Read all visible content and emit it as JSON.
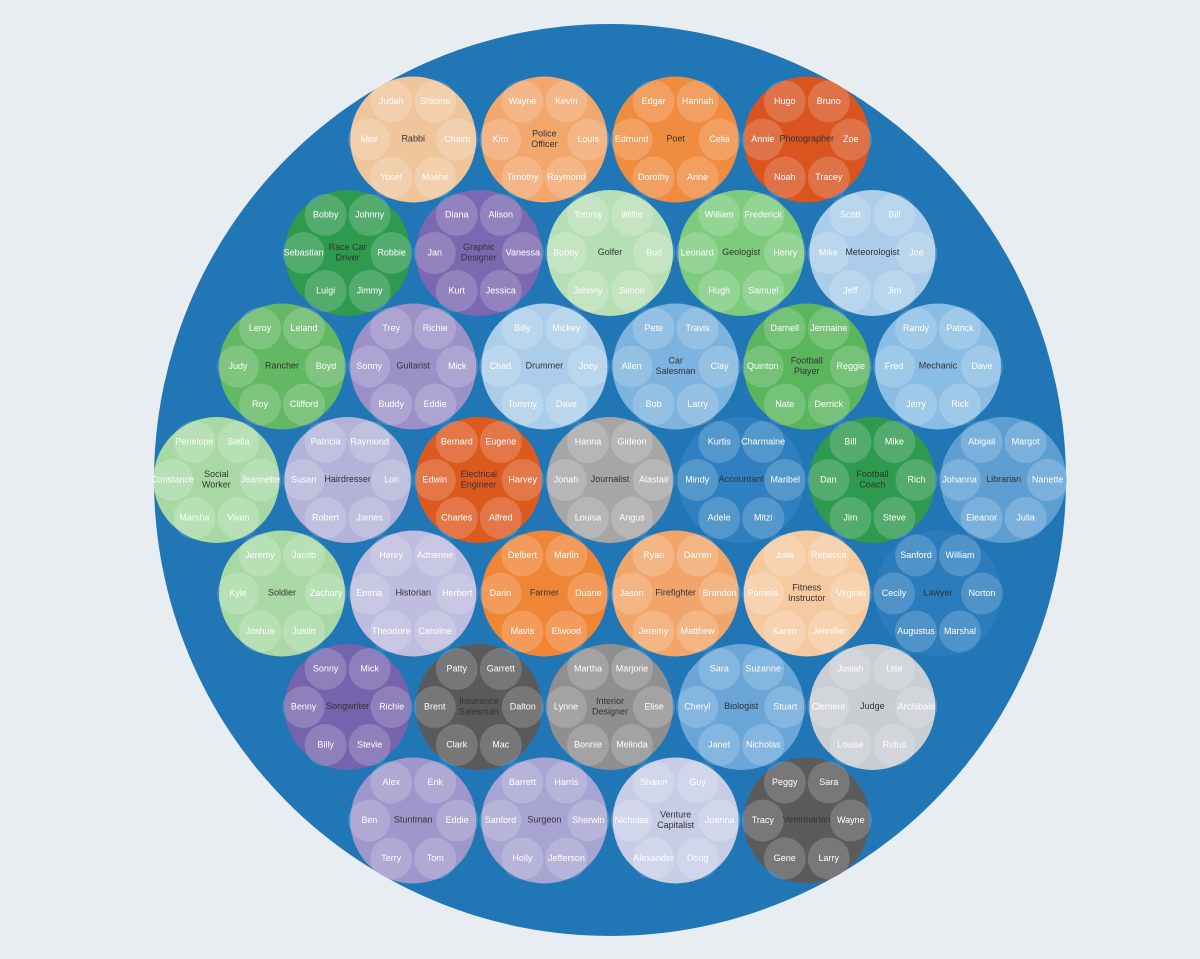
{
  "chart_data": {
    "type": "circle-packing",
    "groups": [
      {
        "name": "Rabbi",
        "color": "#efc59c",
        "children": [
          "Judah",
          "Shlomo",
          "Meir",
          "Chaim",
          "Yosef",
          "Moshe"
        ]
      },
      {
        "name": "Police Officer",
        "color": "#f2a76d",
        "children": [
          "Wayne",
          "Kevin",
          "Kim",
          "Louis",
          "Timothy",
          "Raymond"
        ]
      },
      {
        "name": "Poet",
        "color": "#ef8c3f",
        "children": [
          "Edgar",
          "Hannah",
          "Edmund",
          "Celia",
          "Dorothy",
          "Anne"
        ]
      },
      {
        "name": "Photographer",
        "color": "#d9541f",
        "children": [
          "Hugo",
          "Bruno",
          "Annie",
          "Zoe",
          "Noah",
          "Tracey"
        ]
      },
      {
        "name": "Race Car Driver",
        "color": "#2e9a4e",
        "children": [
          "Bobby",
          "Johnny",
          "Sebastian",
          "Robbie",
          "Luigi",
          "Jimmy"
        ]
      },
      {
        "name": "Graphic Designer",
        "color": "#7a68b0",
        "children": [
          "Diana",
          "Alison",
          "Jan",
          "Vanessa",
          "Kurt",
          "Jessica"
        ]
      },
      {
        "name": "Golfer",
        "color": "#b7dfb5",
        "children": [
          "Tommy",
          "Willie",
          "Bobby",
          "Bud",
          "Johnny",
          "Simon"
        ]
      },
      {
        "name": "Geologist",
        "color": "#7dcb7d",
        "children": [
          "William",
          "Frederick",
          "Leonard",
          "Henry",
          "Hugh",
          "Samuel"
        ]
      },
      {
        "name": "Meteorologist",
        "color": "#abcdea",
        "children": [
          "Scott",
          "Bill",
          "Mike",
          "Joe",
          "Jeff",
          "Jim"
        ]
      },
      {
        "name": "Rancher",
        "color": "#63b863",
        "children": [
          "Leroy",
          "Leland",
          "Judy",
          "Boyd",
          "Roy",
          "Clifford"
        ]
      },
      {
        "name": "Guitarist",
        "color": "#9b91c7",
        "children": [
          "Trey",
          "Richie",
          "Sonny",
          "Mick",
          "Buddy",
          "Eddie"
        ]
      },
      {
        "name": "Drummer",
        "color": "#abcdea",
        "children": [
          "Billy",
          "Mickey",
          "Chad",
          "Joey",
          "Tommy",
          "Dave"
        ]
      },
      {
        "name": "Car Salesman",
        "color": "#7db3df",
        "children": [
          "Pete",
          "Travis",
          "Allen",
          "Clay",
          "Bob",
          "Larry"
        ]
      },
      {
        "name": "Football Player",
        "color": "#5ab55c",
        "children": [
          "Darnell",
          "Jermaine",
          "Quinton",
          "Reggie",
          "Nate",
          "Derrick"
        ]
      },
      {
        "name": "Mechanic",
        "color": "#89bde4",
        "children": [
          "Randy",
          "Patrick",
          "Fred",
          "Dave",
          "Jerry",
          "Rick"
        ]
      },
      {
        "name": "Social Worker",
        "color": "#a8d9a4",
        "children": [
          "Penelope",
          "Stella",
          "Constance",
          "Jeannette",
          "Marsha",
          "Vivan"
        ]
      },
      {
        "name": "Hairdresser",
        "color": "#b3b2d8",
        "children": [
          "Patricia",
          "Raymond",
          "Susan",
          "Lori",
          "Robert",
          "James"
        ]
      },
      {
        "name": "Electrical Engineer",
        "color": "#dd5a1f",
        "children": [
          "Bernard",
          "Eugene",
          "Edwin",
          "Harvey",
          "Charles",
          "Alfred"
        ]
      },
      {
        "name": "Journalist",
        "color": "#a6a6a6",
        "children": [
          "Hanna",
          "Gideon",
          "Jonah",
          "Alastair",
          "Louisa",
          "Angus"
        ]
      },
      {
        "name": "Accountant",
        "color": "#2f80c0",
        "children": [
          "Kurtis",
          "Charmaine",
          "Mindy",
          "Maribel",
          "Adele",
          "Mitzi"
        ]
      },
      {
        "name": "Football Coach",
        "color": "#2e9a4e",
        "children": [
          "Bill",
          "Mike",
          "Dan",
          "Rich",
          "Jim",
          "Steve"
        ]
      },
      {
        "name": "Librarian",
        "color": "#5d9fd3",
        "children": [
          "Abigail",
          "Margot",
          "Johanna",
          "Nanette",
          "Eleanor",
          "Julia"
        ]
      },
      {
        "name": "Soldier",
        "color": "#a8d9a4",
        "children": [
          "Jeremy",
          "Jacob",
          "Kyle",
          "Zachary",
          "Joshua",
          "Justin"
        ]
      },
      {
        "name": "Historian",
        "color": "#bebcdf",
        "children": [
          "Henry",
          "Adrienne",
          "Emma",
          "Herbert",
          "Theodore",
          "Caroline"
        ]
      },
      {
        "name": "Farmer",
        "color": "#ef8636",
        "children": [
          "Delbert",
          "Marlin",
          "Darin",
          "Duane",
          "Mavis",
          "Elwood"
        ]
      },
      {
        "name": "Firefighter",
        "color": "#f2a56b",
        "children": [
          "Ryan",
          "Darren",
          "Jason",
          "Brandon",
          "Jeremy",
          "Matthew"
        ]
      },
      {
        "name": "Fitness Instructor",
        "color": "#f6caa0",
        "children": [
          "Julie",
          "Rebecca",
          "Pamela",
          "Virginia",
          "Karen",
          "Jennifer"
        ]
      },
      {
        "name": "Lawyer",
        "color": "#2a7cbd",
        "children": [
          "Sanford",
          "William",
          "Cecily",
          "Norton",
          "Augustus",
          "Marshal"
        ]
      },
      {
        "name": "Songwriter",
        "color": "#7564ad",
        "children": [
          "Sonny",
          "Mick",
          "Benny",
          "Richie",
          "Billy",
          "Stevie"
        ]
      },
      {
        "name": "Insurance Salesman",
        "color": "#5a5a5a",
        "children": [
          "Patty",
          "Garrett",
          "Brent",
          "Dalton",
          "Clark",
          "Mac"
        ]
      },
      {
        "name": "Interior Designer",
        "color": "#8f8f8f",
        "children": [
          "Martha",
          "Marjorie",
          "Lynne",
          "Elise",
          "Bonnie",
          "Melinda"
        ]
      },
      {
        "name": "Biologist",
        "color": "#6aa6d8",
        "children": [
          "Sara",
          "Suzanne",
          "Cheryl",
          "Stuart",
          "Janet",
          "Nicholas"
        ]
      },
      {
        "name": "Judge",
        "color": "#c9ced3",
        "children": [
          "Josiah",
          "Lise",
          "Clement",
          "Archibald",
          "Louise",
          "Rufus"
        ]
      },
      {
        "name": "Stuntman",
        "color": "#9e97cb",
        "children": [
          "Alex",
          "Erik",
          "Ben",
          "Eddie",
          "Terry",
          "Tom"
        ]
      },
      {
        "name": "Surgeon",
        "color": "#a8a4d2",
        "children": [
          "Barrett",
          "Harris",
          "Sanford",
          "Sherwin",
          "Holly",
          "Jefferson"
        ]
      },
      {
        "name": "Venture Capitalist",
        "color": "#c8cde6",
        "children": [
          "Shawn",
          "Guy",
          "Nicholas",
          "Joanna",
          "Alexander",
          "Doug"
        ]
      },
      {
        "name": "Veterinarian",
        "color": "#5b5b5b",
        "children": [
          "Peggy",
          "Sara",
          "Tracy",
          "Wayne",
          "Gene",
          "Larry"
        ]
      }
    ]
  }
}
